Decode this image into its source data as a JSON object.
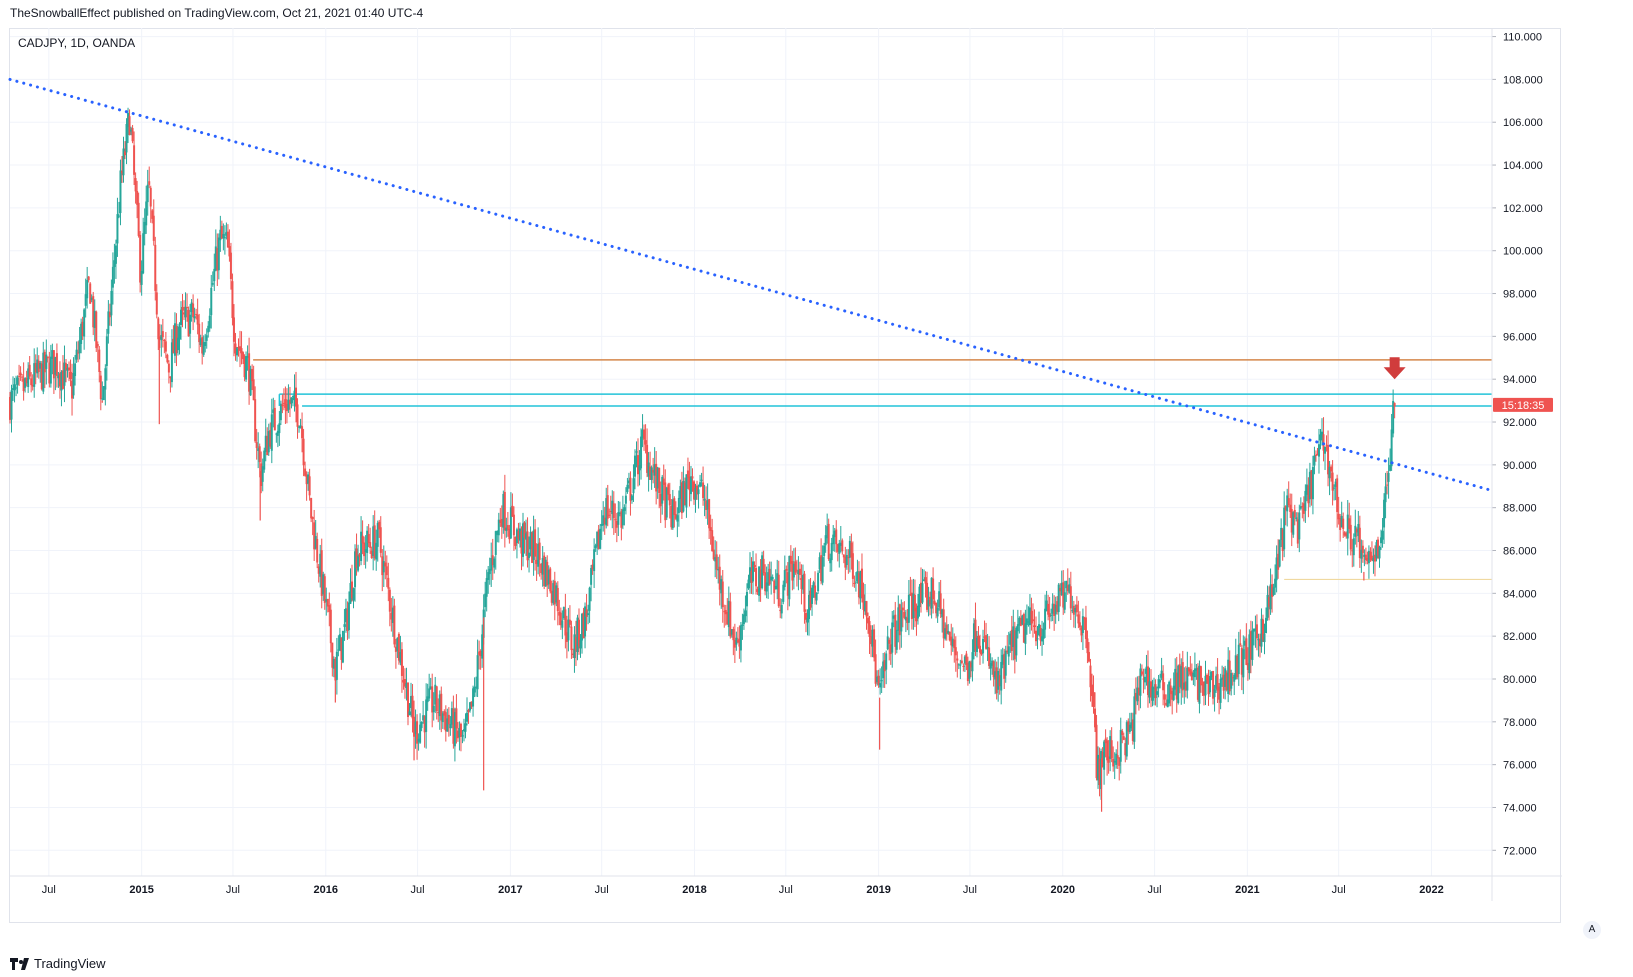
{
  "header": {
    "published_by": "TheSnowballEffect published on TradingView.com, Oct 21, 2021 01:40 UTC-4"
  },
  "symbol_line": "CADJPY, 1D, OANDA",
  "footer": {
    "brand": "TradingView",
    "auto_label": "A"
  },
  "colors": {
    "up": "#26a69a",
    "down": "#ef5350",
    "trendline": "#2962ff",
    "orange_level": "#d4874b",
    "cyan_level": "#22c3d8",
    "yellow_level": "#f0d9a0",
    "price_tag": "#ef5350",
    "arrow": "#d03c3c"
  },
  "chart_data": {
    "type": "candlestick",
    "symbol": "CADJPY",
    "timeframe": "1D",
    "source": "OANDA",
    "ylim": [
      70.8,
      110.4
    ],
    "y_ticks": [
      "110.000",
      "108.000",
      "106.000",
      "104.000",
      "102.000",
      "100.000",
      "98.000",
      "96.000",
      "94.000",
      "92.000",
      "90.000",
      "88.000",
      "86.000",
      "84.000",
      "82.000",
      "80.000",
      "78.000",
      "76.000",
      "74.000",
      "72.000"
    ],
    "x_ticks": [
      {
        "label": "Jul",
        "date": "2014-07-01",
        "bold": false
      },
      {
        "label": "2015",
        "date": "2015-01-01",
        "bold": true
      },
      {
        "label": "Jul",
        "date": "2015-07-01",
        "bold": false
      },
      {
        "label": "2016",
        "date": "2016-01-01",
        "bold": true
      },
      {
        "label": "Jul",
        "date": "2016-07-01",
        "bold": false
      },
      {
        "label": "2017",
        "date": "2017-01-01",
        "bold": true
      },
      {
        "label": "Jul",
        "date": "2017-07-01",
        "bold": false
      },
      {
        "label": "2018",
        "date": "2018-01-01",
        "bold": true
      },
      {
        "label": "Jul",
        "date": "2018-07-01",
        "bold": false
      },
      {
        "label": "2019",
        "date": "2019-01-01",
        "bold": true
      },
      {
        "label": "Jul",
        "date": "2019-07-01",
        "bold": false
      },
      {
        "label": "2020",
        "date": "2020-01-01",
        "bold": true
      },
      {
        "label": "Jul",
        "date": "2020-07-01",
        "bold": false
      },
      {
        "label": "2021",
        "date": "2021-01-01",
        "bold": true
      },
      {
        "label": "Jul",
        "date": "2021-07-01",
        "bold": false
      },
      {
        "label": "2022",
        "date": "2022-01-01",
        "bold": true
      }
    ],
    "x_range": [
      "2014-04-15",
      "2022-05-01"
    ],
    "price_path": [
      [
        "2014-04-15",
        93.0
      ],
      [
        "2014-06-01",
        94.0
      ],
      [
        "2014-07-15",
        94.8
      ],
      [
        "2014-08-15",
        93.5
      ],
      [
        "2014-09-20",
        98.5
      ],
      [
        "2014-10-15",
        93.0
      ],
      [
        "2014-11-20",
        103.0
      ],
      [
        "2014-12-08",
        106.3
      ],
      [
        "2014-12-30",
        99.0
      ],
      [
        "2015-01-15",
        103.0
      ],
      [
        "2015-02-05",
        96.0
      ],
      [
        "2015-02-25",
        94.5
      ],
      [
        "2015-03-15",
        96.5
      ],
      [
        "2015-04-15",
        97.0
      ],
      [
        "2015-05-01",
        95.5
      ],
      [
        "2015-06-05",
        100.5
      ],
      [
        "2015-06-20",
        100.2
      ],
      [
        "2015-07-05",
        96.0
      ],
      [
        "2015-08-01",
        94.5
      ],
      [
        "2015-08-25",
        89.5
      ],
      [
        "2015-09-10",
        91.5
      ],
      [
        "2015-10-15",
        93.0
      ],
      [
        "2015-11-10",
        92.5
      ],
      [
        "2015-12-01",
        88.0
      ],
      [
        "2016-01-20",
        80.5
      ],
      [
        "2016-02-10",
        82.5
      ],
      [
        "2016-03-01",
        86.0
      ],
      [
        "2016-04-15",
        86.5
      ],
      [
        "2016-05-20",
        82.0
      ],
      [
        "2016-06-25",
        77.5
      ],
      [
        "2016-08-01",
        79.0
      ],
      [
        "2016-09-01",
        78.0
      ],
      [
        "2016-09-30",
        77.0
      ],
      [
        "2016-10-20",
        79.0
      ],
      [
        "2016-11-20",
        85.0
      ],
      [
        "2016-12-15",
        88.0
      ],
      [
        "2017-01-20",
        86.5
      ],
      [
        "2017-02-20",
        86.0
      ],
      [
        "2017-04-01",
        84.0
      ],
      [
        "2017-05-05",
        81.5
      ],
      [
        "2017-06-01",
        83.0
      ],
      [
        "2017-07-05",
        88.0
      ],
      [
        "2017-08-10",
        87.5
      ],
      [
        "2017-09-20",
        91.0
      ],
      [
        "2017-10-20",
        89.0
      ],
      [
        "2017-11-20",
        87.5
      ],
      [
        "2017-12-25",
        89.5
      ],
      [
        "2018-01-20",
        88.5
      ],
      [
        "2018-02-15",
        85.0
      ],
      [
        "2018-03-25",
        81.5
      ],
      [
        "2018-04-20",
        84.5
      ],
      [
        "2018-05-20",
        85.0
      ],
      [
        "2018-06-20",
        84.0
      ],
      [
        "2018-07-20",
        85.5
      ],
      [
        "2018-08-15",
        83.0
      ],
      [
        "2018-09-20",
        86.5
      ],
      [
        "2018-10-15",
        86.0
      ],
      [
        "2018-11-10",
        85.5
      ],
      [
        "2018-12-10",
        83.5
      ],
      [
        "2019-01-02",
        79.0
      ],
      [
        "2019-01-25",
        82.0
      ],
      [
        "2019-03-10",
        83.5
      ],
      [
        "2019-04-20",
        84.0
      ],
      [
        "2019-05-25",
        81.5
      ],
      [
        "2019-06-25",
        80.5
      ],
      [
        "2019-07-15",
        82.5
      ],
      [
        "2019-08-25",
        79.5
      ],
      [
        "2019-09-20",
        81.5
      ],
      [
        "2019-10-20",
        82.5
      ],
      [
        "2019-11-20",
        82.5
      ],
      [
        "2019-12-20",
        83.5
      ],
      [
        "2020-01-17",
        84.0
      ],
      [
        "2020-02-20",
        82.0
      ],
      [
        "2020-03-10",
        75.5
      ],
      [
        "2020-03-20",
        76.5
      ],
      [
        "2020-04-15",
        76.5
      ],
      [
        "2020-05-15",
        77.5
      ],
      [
        "2020-06-08",
        80.5
      ],
      [
        "2020-06-25",
        79.5
      ],
      [
        "2020-07-25",
        79.5
      ],
      [
        "2020-08-25",
        80.0
      ],
      [
        "2020-09-15",
        80.0
      ],
      [
        "2020-10-15",
        79.5
      ],
      [
        "2020-11-20",
        80.0
      ],
      [
        "2020-12-15",
        80.8
      ],
      [
        "2021-01-15",
        81.5
      ],
      [
        "2021-02-20",
        84.0
      ],
      [
        "2021-03-20",
        88.0
      ],
      [
        "2021-04-15",
        87.0
      ],
      [
        "2021-05-20",
        90.5
      ],
      [
        "2021-06-05",
        91.0
      ],
      [
        "2021-06-20",
        89.0
      ],
      [
        "2021-07-10",
        87.0
      ],
      [
        "2021-08-10",
        86.5
      ],
      [
        "2021-08-20",
        85.0
      ],
      [
        "2021-09-10",
        86.0
      ],
      [
        "2021-09-25",
        87.0
      ],
      [
        "2021-10-05",
        89.0
      ],
      [
        "2021-10-12",
        91.0
      ],
      [
        "2021-10-20",
        92.8
      ]
    ],
    "spikes": [
      [
        "2014-10-15",
        92.9
      ],
      [
        "2015-02-05",
        91.9
      ],
      [
        "2015-08-24",
        87.4
      ],
      [
        "2016-01-20",
        78.9
      ],
      [
        "2016-06-24",
        76.2
      ],
      [
        "2016-11-09",
        74.8
      ],
      [
        "2019-01-03",
        76.7
      ],
      [
        "2020-03-18",
        73.8
      ],
      [
        "2021-08-20",
        84.6
      ]
    ],
    "last_price": 92.8,
    "countdown_label": "15:18:35",
    "drawings": {
      "trendline": {
        "style": "dotted",
        "from": [
          "2014-04-15",
          108.0
        ],
        "to": [
          "2022-05-01",
          88.8
        ]
      },
      "orange_level": {
        "y": 94.9,
        "from": "2015-08-10"
      },
      "cyan_level_upper": {
        "y": 93.3,
        "from": "2015-10-01"
      },
      "cyan_level_lower": {
        "y": 92.75,
        "from": "2015-11-15"
      },
      "yellow_level": {
        "y": 84.65,
        "from": "2021-03-15"
      },
      "down_arrow": {
        "x": "2021-10-20",
        "y": 94.0
      }
    }
  }
}
